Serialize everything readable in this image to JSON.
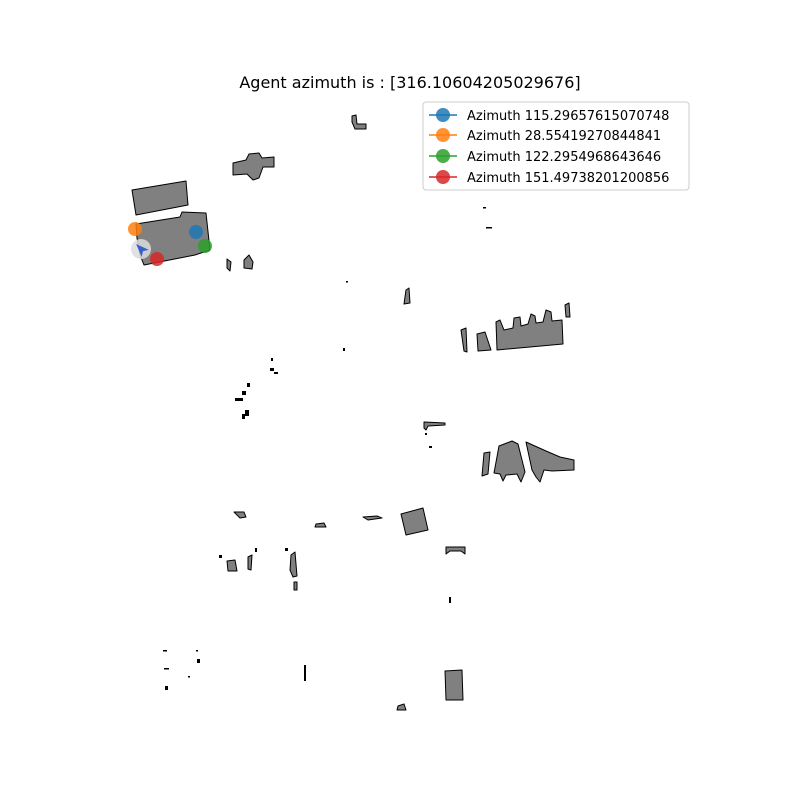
{
  "title": "Agent azimuth is : [316.10604205029676]",
  "agent": {
    "azimuth": 316.10604205029676,
    "marker_color": "#3a5fcd",
    "halo_color": "#dcdcdc"
  },
  "map_style": {
    "building_fill": "#808080",
    "building_stroke": "#000000",
    "background": "#ffffff"
  },
  "legend": {
    "placement": "top-right",
    "entries": [
      {
        "label": "Azimuth 115.29657615070748",
        "color": "#1f77b4"
      },
      {
        "label": "Azimuth 28.55419270844841",
        "color": "#ff7f0e"
      },
      {
        "label": "Azimuth 122.2954968643646",
        "color": "#2ca02c"
      },
      {
        "label": "Azimuth 151.49738201200856",
        "color": "#d62728"
      }
    ]
  },
  "candidates": [
    {
      "azimuth": 115.29657615070748,
      "color": "#1f77b4"
    },
    {
      "azimuth": 28.55419270844841,
      "color": "#ff7f0e"
    },
    {
      "azimuth": 122.2954968643646,
      "color": "#2ca02c"
    },
    {
      "azimuth": 151.49738201200856,
      "color": "#d62728"
    }
  ]
}
